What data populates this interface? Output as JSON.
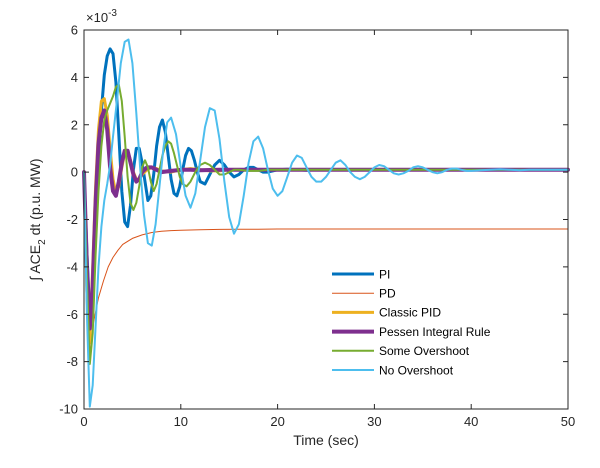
{
  "chart_data": {
    "type": "line",
    "title": "",
    "xlabel": "Time (sec)",
    "ylabel": {
      "prefix": "∫ ACE",
      "subscript": "2",
      "suffix": " dt (p.u. MW)"
    },
    "y_exponent_label": "×10",
    "y_exponent_power": "-3",
    "xlim": [
      0,
      50
    ],
    "ylim": [
      -10,
      6
    ],
    "y_scale_note": "values shown in units of 1e-3",
    "x_ticks": [
      "0",
      "10",
      "20",
      "30",
      "40",
      "50"
    ],
    "y_ticks": [
      "-10",
      "-8",
      "-6",
      "-4",
      "-2",
      "0",
      "2",
      "4",
      "6"
    ],
    "grid": false,
    "legend_placement": "lower-right-inside",
    "series": [
      {
        "name": "PI",
        "color": "#0072BD",
        "width": 3,
        "x": [
          0,
          0.3,
          0.6,
          0.9,
          1.2,
          1.5,
          1.8,
          2.1,
          2.4,
          2.7,
          3.0,
          3.3,
          3.6,
          3.9,
          4.2,
          4.5,
          4.8,
          5.1,
          5.4,
          5.7,
          6.0,
          6.3,
          6.6,
          6.9,
          7.2,
          7.5,
          7.8,
          8.1,
          8.4,
          8.7,
          9.0,
          9.3,
          9.6,
          9.9,
          10.2,
          10.5,
          10.8,
          11.1,
          11.4,
          11.7,
          12.0,
          12.5,
          13.0,
          13.5,
          14.0,
          14.5,
          15.0,
          15.5,
          16.0,
          16.5,
          17.0,
          17.5,
          18.0,
          18.5,
          19.0,
          19.5,
          20.0,
          21.0,
          22.0,
          23.0,
          24.0,
          25.0,
          26.0,
          28.0,
          30.0,
          32.0,
          35.0,
          40.0,
          45.0,
          50.0
        ],
        "y": [
          0,
          -3.4,
          -6.0,
          -5.5,
          -2.7,
          0.3,
          2.6,
          4.1,
          4.9,
          5.2,
          5.0,
          3.8,
          1.6,
          -0.8,
          -2.1,
          -2.3,
          -1.4,
          0.1,
          1.0,
          1.0,
          0.4,
          -0.4,
          -1.2,
          -1.0,
          -0.1,
          1.1,
          1.9,
          2.2,
          1.7,
          0.7,
          -0.3,
          -0.9,
          -1.0,
          -0.6,
          0.1,
          0.7,
          1.0,
          0.9,
          0.5,
          0,
          -0.4,
          -0.5,
          -0.1,
          0.3,
          0.5,
          0.3,
          0,
          -0.2,
          -0.1,
          0.1,
          0.2,
          0.2,
          0.1,
          0.0,
          0.0,
          0.05,
          0.1,
          0.12,
          0.1,
          0.08,
          0.1,
          0.1,
          0.1,
          0.1,
          0.1,
          0.1,
          0.1,
          0.1,
          0.1,
          0.1
        ]
      },
      {
        "name": "PD",
        "color": "#D95319",
        "width": 1,
        "x": [
          0,
          0.2,
          0.5,
          0.8,
          1.0,
          1.5,
          2.0,
          2.5,
          3.0,
          3.5,
          4.0,
          5.0,
          6.0,
          7.0,
          8.0,
          9.0,
          10.0,
          12.0,
          14.0,
          16.0,
          18.0,
          20.0,
          25.0,
          30.0,
          35.0,
          40.0,
          45.0,
          50.0
        ],
        "y": [
          0,
          -5.0,
          -8.0,
          -7.0,
          -6.3,
          -5.3,
          -4.6,
          -4.0,
          -3.6,
          -3.3,
          -3.05,
          -2.8,
          -2.65,
          -2.55,
          -2.5,
          -2.47,
          -2.45,
          -2.43,
          -2.42,
          -2.41,
          -2.41,
          -2.4,
          -2.4,
          -2.4,
          -2.4,
          -2.4,
          -2.4,
          -2.4
        ]
      },
      {
        "name": "Classic PID",
        "color": "#EDB120",
        "width": 3,
        "x": [
          0,
          0.3,
          0.6,
          0.9,
          1.2,
          1.5,
          1.8,
          2.1,
          2.4,
          2.7,
          3.0,
          3.3,
          3.6,
          3.9,
          4.2,
          4.5,
          4.8,
          5.1,
          5.4,
          5.7,
          6.0,
          6.5,
          7.0,
          7.5,
          8.0,
          9.0,
          10.0,
          11.0,
          12.0,
          13.0,
          14.0,
          15.0,
          17.0,
          20.0,
          25.0,
          30.0,
          40.0,
          50.0
        ],
        "y": [
          0,
          -4.8,
          -7.2,
          -4.0,
          -0.6,
          1.8,
          3.0,
          3.1,
          2.4,
          1.0,
          -0.3,
          -0.9,
          -0.6,
          0.2,
          0.8,
          0.9,
          0.5,
          0.0,
          -0.3,
          -0.3,
          -0.1,
          0.1,
          0.2,
          0.15,
          0.05,
          0.0,
          0.1,
          0.15,
          0.1,
          0.05,
          0.05,
          0.1,
          0.1,
          0.1,
          0.1,
          0.1,
          0.1,
          0.1
        ]
      },
      {
        "name": "Pessen Integral Rule",
        "color": "#7E2F8E",
        "width": 4,
        "x": [
          0,
          0.3,
          0.6,
          0.9,
          1.2,
          1.5,
          1.8,
          2.1,
          2.4,
          2.7,
          3.0,
          3.3,
          3.6,
          3.9,
          4.2,
          4.5,
          4.8,
          5.1,
          5.4,
          5.7,
          6.0,
          6.5,
          7.0,
          7.5,
          8.0,
          9.0,
          10.0,
          11.0,
          12.0,
          14.0,
          16.0,
          20.0,
          25.0,
          30.0,
          40.0,
          50.0
        ],
        "y": [
          0,
          -4.0,
          -6.6,
          -4.8,
          -1.3,
          1.2,
          2.3,
          2.6,
          1.8,
          0.2,
          -0.8,
          -1.0,
          -0.4,
          0.4,
          0.9,
          0.9,
          0.4,
          -0.1,
          -0.4,
          -0.3,
          0.0,
          0.2,
          0.2,
          0.1,
          0.0,
          0.05,
          0.1,
          0.1,
          0.08,
          0.1,
          0.1,
          0.1,
          0.1,
          0.1,
          0.1,
          0.1
        ]
      },
      {
        "name": "Some Overshoot",
        "color": "#77AC30",
        "width": 2,
        "x": [
          0,
          0.3,
          0.6,
          0.9,
          1.2,
          1.5,
          1.8,
          2.1,
          2.4,
          2.7,
          3.0,
          3.3,
          3.6,
          3.9,
          4.2,
          4.5,
          4.8,
          5.1,
          5.4,
          5.7,
          6.0,
          6.3,
          6.6,
          6.9,
          7.2,
          7.5,
          7.8,
          8.1,
          8.4,
          8.7,
          9.0,
          9.3,
          9.6,
          9.9,
          10.2,
          10.6,
          11.0,
          11.5,
          12.0,
          12.5,
          13.0,
          13.5,
          14.0,
          14.5,
          15.0,
          15.5,
          16.0,
          17.0,
          18.0,
          19.0,
          20.0,
          22.0,
          24.0,
          26.0,
          30.0,
          35.0,
          40.0,
          50.0
        ],
        "y": [
          0,
          -4.5,
          -8.1,
          -6.8,
          -3.5,
          -0.8,
          1.1,
          2.2,
          2.6,
          2.9,
          3.2,
          3.6,
          3.7,
          3.0,
          1.5,
          -0.2,
          -1.3,
          -1.6,
          -1.3,
          -0.6,
          0.2,
          0.5,
          0.2,
          -0.4,
          -0.8,
          -0.5,
          0.1,
          0.7,
          1.1,
          1.3,
          1.2,
          0.8,
          0.3,
          -0.2,
          -0.5,
          -0.6,
          -0.4,
          0.0,
          0.3,
          0.4,
          0.3,
          0.1,
          -0.1,
          -0.1,
          0.0,
          0.1,
          0.1,
          0.05,
          0.05,
          0.1,
          0.1,
          0.1,
          0.1,
          0.1,
          0.1,
          0.1,
          0.1,
          0.1
        ]
      },
      {
        "name": "No Overshoot",
        "color": "#4DBEEE",
        "width": 2,
        "x": [
          0,
          0.3,
          0.6,
          0.9,
          1.2,
          1.5,
          1.8,
          2.1,
          2.4,
          2.7,
          3.0,
          3.4,
          3.8,
          4.2,
          4.6,
          5.0,
          5.4,
          5.8,
          6.2,
          6.6,
          7.0,
          7.4,
          7.8,
          8.2,
          8.6,
          9.0,
          9.5,
          10.0,
          10.5,
          11.0,
          11.5,
          12.0,
          12.5,
          13.0,
          13.5,
          14.0,
          14.5,
          15.0,
          15.5,
          16.0,
          16.5,
          17.0,
          17.5,
          18.0,
          18.5,
          19.0,
          19.5,
          20.0,
          20.5,
          21.0,
          21.5,
          22.0,
          22.5,
          23.0,
          23.5,
          24.0,
          24.5,
          25.0,
          25.5,
          26.0,
          26.5,
          27.0,
          27.5,
          28.0,
          28.5,
          29.0,
          29.5,
          30.0,
          30.5,
          31.0,
          31.5,
          32.0,
          32.5,
          33.0,
          33.5,
          34.0,
          34.5,
          35.0,
          35.5,
          36.0,
          36.5,
          37.0,
          37.5,
          38.0,
          38.5,
          39.0,
          39.5,
          40.0,
          41.0,
          42.0,
          43.0,
          44.0,
          45.0,
          46.0,
          47.0,
          48.0,
          49.0,
          50.0
        ],
        "y": [
          0,
          -6.0,
          -9.9,
          -9.0,
          -6.5,
          -4.0,
          -2.3,
          -1.2,
          -0.5,
          0.3,
          1.5,
          3.0,
          4.6,
          5.5,
          5.6,
          4.6,
          2.5,
          0.2,
          -1.8,
          -3.0,
          -3.1,
          -2.2,
          -0.6,
          1.0,
          2.1,
          2.3,
          1.6,
          0.2,
          -1.0,
          -1.5,
          -0.9,
          0.5,
          1.9,
          2.7,
          2.6,
          1.4,
          -0.4,
          -1.9,
          -2.6,
          -2.2,
          -1.0,
          0.4,
          1.3,
          1.5,
          1.0,
          0.1,
          -0.7,
          -1.0,
          -0.8,
          -0.2,
          0.4,
          0.7,
          0.6,
          0.2,
          -0.2,
          -0.4,
          -0.4,
          -0.2,
          0.1,
          0.4,
          0.5,
          0.3,
          0.0,
          -0.2,
          -0.3,
          -0.2,
          0.0,
          0.2,
          0.3,
          0.25,
          0.1,
          -0.05,
          -0.1,
          -0.05,
          0.05,
          0.2,
          0.25,
          0.2,
          0.1,
          0.0,
          -0.05,
          0.0,
          0.1,
          0.15,
          0.15,
          0.1,
          0.05,
          0.05,
          0.08,
          0.1,
          0.12,
          0.1,
          0.08,
          0.1,
          0.1,
          0.1,
          0.1,
          0.1
        ]
      }
    ]
  }
}
